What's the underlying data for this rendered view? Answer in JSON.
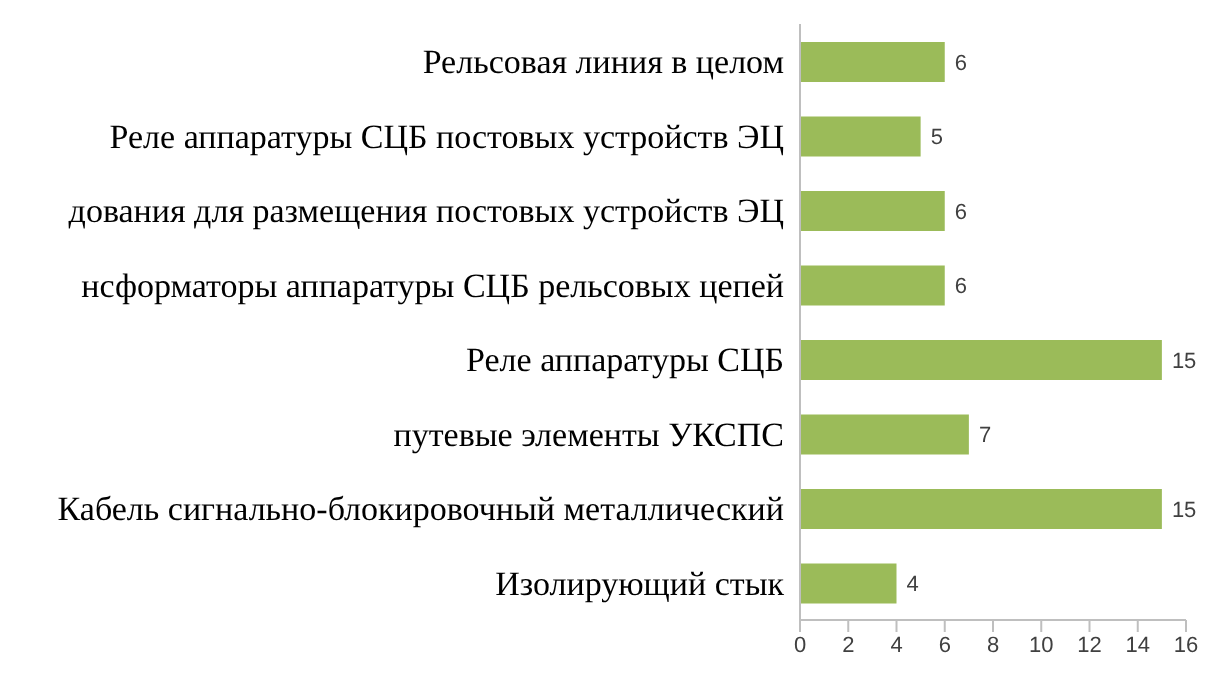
{
  "chart_data": {
    "type": "bar",
    "orientation": "horizontal",
    "categories": [
      "Рельсовая линия в целом",
      "Реле аппаратуры СЦБ постовых устройств ЭЦ",
      "дования для размещения постовых устройств ЭЦ",
      "нсформаторы аппаратуры СЦБ рельсовых цепей",
      "Реле аппаратуры СЦБ",
      "путевые элементы УКСПС",
      "Кабель сигнально-блокировочный металлический",
      "Изолирующий стык"
    ],
    "values": [
      6,
      5,
      6,
      6,
      15,
      7,
      15,
      4
    ],
    "color": "#9bbb59",
    "xlim": [
      0,
      16
    ],
    "xticks": [
      0,
      2,
      4,
      6,
      8,
      10,
      12,
      14,
      16
    ],
    "grid": false,
    "legend": false,
    "data_labels": true
  }
}
